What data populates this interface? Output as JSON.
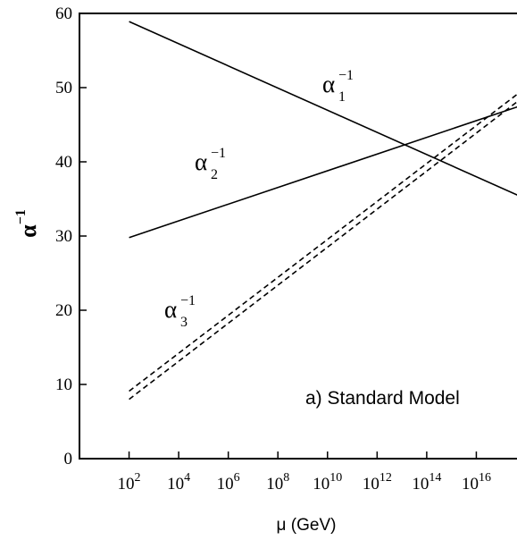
{
  "chart_data": {
    "type": "line",
    "title": "",
    "annotation": "a) Standard Model",
    "xlabel": "μ (GeV)",
    "ylabel": "α⁻¹",
    "x_scale": "log",
    "xlim": [
      1,
      1e+18
    ],
    "ylim": [
      0,
      60
    ],
    "x_ticks": [
      {
        "exp": 2,
        "base": "10",
        "sup": "2"
      },
      {
        "exp": 4,
        "base": "10",
        "sup": "4"
      },
      {
        "exp": 6,
        "base": "10",
        "sup": "6"
      },
      {
        "exp": 8,
        "base": "10",
        "sup": "8"
      },
      {
        "exp": 10,
        "base": "10",
        "sup": "10"
      },
      {
        "exp": 12,
        "base": "10",
        "sup": "12"
      },
      {
        "exp": 14,
        "base": "10",
        "sup": "14"
      },
      {
        "exp": 16,
        "base": "10",
        "sup": "16"
      }
    ],
    "y_ticks": [
      0,
      10,
      20,
      30,
      40,
      50,
      60
    ],
    "grid": false,
    "legend": "none",
    "series": [
      {
        "label_base": "α",
        "label_sub": "1",
        "label_sup": "−1",
        "style": "solid",
        "points": [
          [
            100,
            58.9
          ],
          [
            1e+18,
            35.0
          ]
        ]
      },
      {
        "label_base": "α",
        "label_sub": "2",
        "label_sup": "−1",
        "style": "solid",
        "points": [
          [
            100,
            29.8
          ],
          [
            1e+18,
            47.8
          ]
        ]
      },
      {
        "label_base": "α",
        "label_sub": "3",
        "label_sup": "−1",
        "style": "dashed",
        "points": [
          [
            100,
            9.1
          ],
          [
            1e+18,
            50.0
          ]
        ]
      },
      {
        "style": "dashed",
        "points": [
          [
            100,
            8.0
          ],
          [
            1e+18,
            49.0
          ]
        ]
      }
    ]
  }
}
